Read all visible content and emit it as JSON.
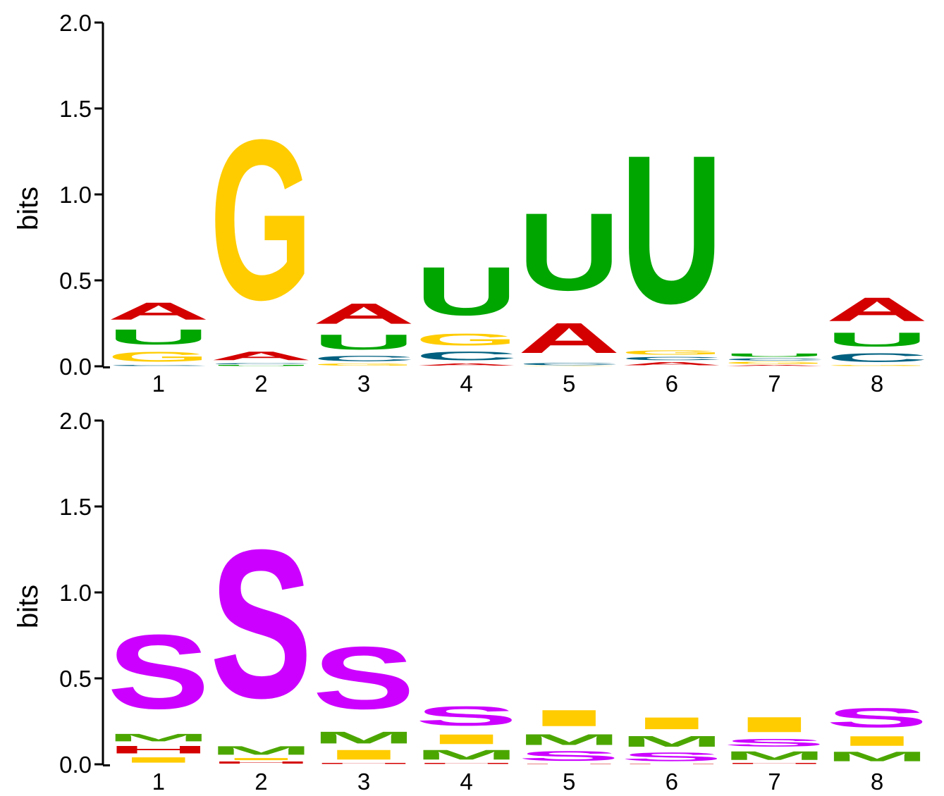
{
  "chart_data": [
    {
      "type": "sequence_logo",
      "name": "rna-logo",
      "ylabel": "bits",
      "ylim": [
        0,
        2.0
      ],
      "yticks": [
        "0.0",
        "0.5",
        "1.0",
        "1.5",
        "2.0"
      ],
      "positions": [
        "1",
        "2",
        "3",
        "4",
        "5",
        "6",
        "7",
        "8"
      ],
      "colors": {
        "A": "#d40000",
        "U": "#00a600",
        "G": "#ffcc00",
        "C": "#006080"
      },
      "columns": [
        [
          {
            "letter": "C",
            "height": 0.01
          },
          {
            "letter": "G",
            "height": 0.09
          },
          {
            "letter": "U",
            "height": 0.14
          },
          {
            "letter": "A",
            "height": 0.16
          }
        ],
        [
          {
            "letter": "U",
            "height": 0.01
          },
          {
            "letter": "C",
            "height": 0.01
          },
          {
            "letter": "A",
            "height": 0.08
          },
          {
            "letter": "G",
            "height": 1.49
          }
        ],
        [
          {
            "letter": "G",
            "height": 0.02
          },
          {
            "letter": "C",
            "height": 0.05
          },
          {
            "letter": "U",
            "height": 0.14
          },
          {
            "letter": "A",
            "height": 0.19
          }
        ],
        [
          {
            "letter": "A",
            "height": 0.02
          },
          {
            "letter": "C",
            "height": 0.08
          },
          {
            "letter": "G",
            "height": 0.11
          },
          {
            "letter": "U",
            "height": 0.45
          }
        ],
        [
          {
            "letter": "G",
            "height": 0.003
          },
          {
            "letter": "C",
            "height": 0.02
          },
          {
            "letter": "A",
            "height": 0.28
          },
          {
            "letter": "U",
            "height": 0.72
          }
        ],
        [
          {
            "letter": "A",
            "height": 0.03
          },
          {
            "letter": "C",
            "height": 0.03
          },
          {
            "letter": "G",
            "height": 0.04
          },
          {
            "letter": "U",
            "height": 1.38
          }
        ],
        [
          {
            "letter": "A",
            "height": 0.01
          },
          {
            "letter": "G",
            "height": 0.02
          },
          {
            "letter": "C",
            "height": 0.02
          },
          {
            "letter": "U",
            "height": 0.03
          }
        ],
        [
          {
            "letter": "G",
            "height": 0.01
          },
          {
            "letter": "C",
            "height": 0.08
          },
          {
            "letter": "U",
            "height": 0.13
          },
          {
            "letter": "A",
            "height": 0.22
          }
        ]
      ]
    },
    {
      "type": "sequence_logo",
      "name": "structure-logo",
      "ylabel": "bits",
      "ylim": [
        0,
        2.0
      ],
      "yticks": [
        "0.0",
        "0.5",
        "1.0",
        "1.5",
        "2.0"
      ],
      "positions": [
        "1",
        "2",
        "3",
        "4",
        "5",
        "6",
        "7",
        "8"
      ],
      "colors": {
        "S": "#cc00ff",
        "M": "#4ca600",
        "I": "#ffcc00",
        "H": "#d40000"
      },
      "columns": [
        [
          {
            "letter": "I",
            "height": 0.05
          },
          {
            "letter": "H",
            "height": 0.07
          },
          {
            "letter": "M",
            "height": 0.07
          },
          {
            "letter": "S",
            "height": 0.69
          }
        ],
        [
          {
            "letter": "H",
            "height": 0.02
          },
          {
            "letter": "I",
            "height": 0.02
          },
          {
            "letter": "M",
            "height": 0.08
          },
          {
            "letter": "S",
            "height": 1.38
          }
        ],
        [
          {
            "letter": "H",
            "height": 0.01
          },
          {
            "letter": "I",
            "height": 0.09
          },
          {
            "letter": "M",
            "height": 0.11
          },
          {
            "letter": "S",
            "height": 0.58
          }
        ],
        [
          {
            "letter": "H",
            "height": 0.01
          },
          {
            "letter": "M",
            "height": 0.09
          },
          {
            "letter": "I",
            "height": 0.09
          },
          {
            "letter": "S",
            "height": 0.18
          }
        ],
        [
          {
            "letter": "H",
            "height": 0.003
          },
          {
            "letter": "S",
            "height": 0.09
          },
          {
            "letter": "M",
            "height": 0.1
          },
          {
            "letter": "I",
            "height": 0.15
          }
        ],
        [
          {
            "letter": "H",
            "height": 0.003
          },
          {
            "letter": "S",
            "height": 0.08
          },
          {
            "letter": "M",
            "height": 0.1
          },
          {
            "letter": "I",
            "height": 0.11
          }
        ],
        [
          {
            "letter": "H",
            "height": 0.01
          },
          {
            "letter": "M",
            "height": 0.08
          },
          {
            "letter": "S",
            "height": 0.07
          },
          {
            "letter": "I",
            "height": 0.14
          }
        ],
        [
          {
            "letter": "M",
            "height": 0.09
          },
          {
            "letter": "I",
            "height": 0.09
          },
          {
            "letter": "S",
            "height": 0.18
          }
        ]
      ]
    }
  ]
}
